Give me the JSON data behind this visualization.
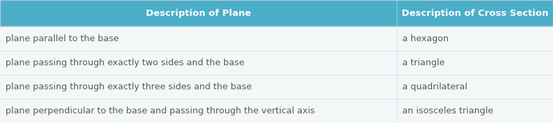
{
  "header": [
    "Description of Plane",
    "Description of Cross Section"
  ],
  "rows": [
    [
      "plane parallel to the base",
      "a hexagon"
    ],
    [
      "plane passing through exactly two sides and the base",
      "a triangle"
    ],
    [
      "plane passing through exactly three sides and the base",
      "a quadrilateral"
    ],
    [
      "plane perpendicular to the base and passing through the vertical axis",
      "an isosceles triangle"
    ]
  ],
  "header_bg": "#4aaec9",
  "header_text_color": "#ffffff",
  "row_bg": "#f4f7f8",
  "row_divider_color": "#d8e4ea",
  "row_text_color": "#595959",
  "outer_border_color": "#b0c8d4",
  "col_split": 0.718,
  "header_fontsize": 9.5,
  "row_fontsize": 9.2,
  "fig_width": 8.0,
  "fig_height": 1.79
}
